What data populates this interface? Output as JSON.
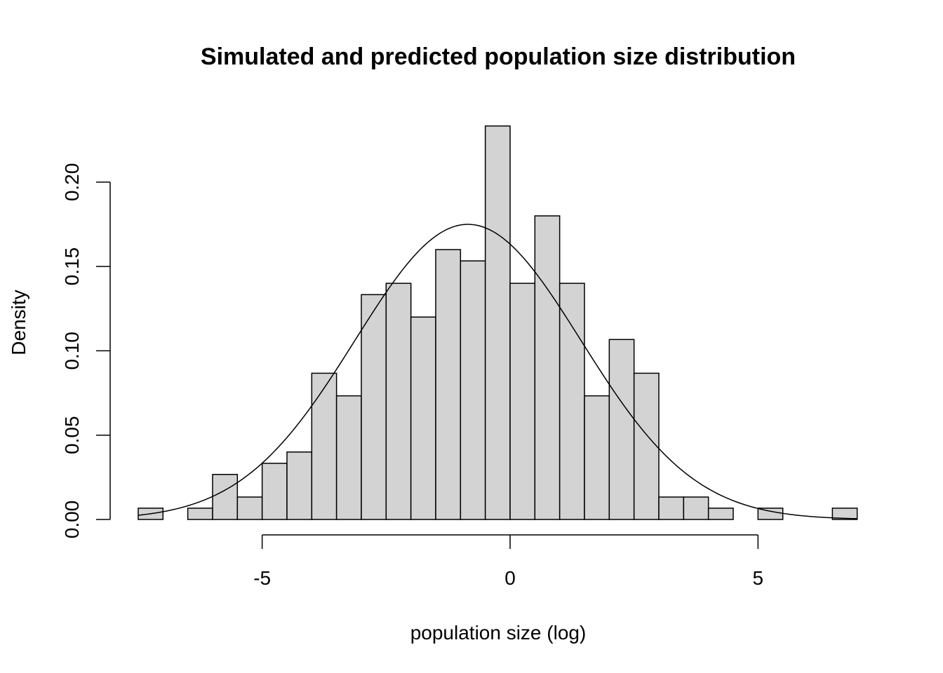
{
  "chart_data": {
    "type": "bar",
    "subtype": "histogram",
    "title": "Simulated and predicted population size distribution",
    "xlabel": "population size (log)",
    "ylabel": "Density",
    "xlim": [
      -7.5,
      7
    ],
    "ylim": [
      0,
      0.235
    ],
    "x_ticks": [
      -5,
      0,
      5
    ],
    "x_tick_labels": [
      "-5",
      "0",
      "5"
    ],
    "y_ticks": [
      0,
      0.05,
      0.1,
      0.15,
      0.2
    ],
    "y_tick_labels": [
      "0.00",
      "0.05",
      "0.10",
      "0.15",
      "0.20"
    ],
    "bar_color": "#d3d3d3",
    "bin_width": 0.5,
    "bins": [
      {
        "x0": -7.5,
        "x1": -7.0,
        "density": 0.0067
      },
      {
        "x0": -7.0,
        "x1": -6.5,
        "density": 0.0
      },
      {
        "x0": -6.5,
        "x1": -6.0,
        "density": 0.0067
      },
      {
        "x0": -6.0,
        "x1": -5.5,
        "density": 0.0267
      },
      {
        "x0": -5.5,
        "x1": -5.0,
        "density": 0.0133
      },
      {
        "x0": -5.0,
        "x1": -4.5,
        "density": 0.0333
      },
      {
        "x0": -4.5,
        "x1": -4.0,
        "density": 0.04
      },
      {
        "x0": -4.0,
        "x1": -3.5,
        "density": 0.0867
      },
      {
        "x0": -3.5,
        "x1": -3.0,
        "density": 0.0733
      },
      {
        "x0": -3.0,
        "x1": -2.5,
        "density": 0.1333
      },
      {
        "x0": -2.5,
        "x1": -2.0,
        "density": 0.14
      },
      {
        "x0": -2.0,
        "x1": -1.5,
        "density": 0.12
      },
      {
        "x0": -1.5,
        "x1": -1.0,
        "density": 0.16
      },
      {
        "x0": -1.0,
        "x1": -0.5,
        "density": 0.1533
      },
      {
        "x0": -0.5,
        "x1": 0.0,
        "density": 0.2333
      },
      {
        "x0": 0.0,
        "x1": 0.5,
        "density": 0.14
      },
      {
        "x0": 0.5,
        "x1": 1.0,
        "density": 0.18
      },
      {
        "x0": 1.0,
        "x1": 1.5,
        "density": 0.14
      },
      {
        "x0": 1.5,
        "x1": 2.0,
        "density": 0.0733
      },
      {
        "x0": 2.0,
        "x1": 2.5,
        "density": 0.1067
      },
      {
        "x0": 2.5,
        "x1": 3.0,
        "density": 0.0867
      },
      {
        "x0": 3.0,
        "x1": 3.5,
        "density": 0.0133
      },
      {
        "x0": 3.5,
        "x1": 4.0,
        "density": 0.0133
      },
      {
        "x0": 4.0,
        "x1": 4.5,
        "density": 0.0067
      },
      {
        "x0": 4.5,
        "x1": 5.0,
        "density": 0.0
      },
      {
        "x0": 5.0,
        "x1": 5.5,
        "density": 0.0067
      },
      {
        "x0": 5.5,
        "x1": 6.0,
        "density": 0.0
      },
      {
        "x0": 6.0,
        "x1": 6.5,
        "density": 0.0
      },
      {
        "x0": 6.5,
        "x1": 7.0,
        "density": 0.0067
      }
    ],
    "curve": {
      "type": "normal-density",
      "mean": -0.85,
      "sd": 2.28,
      "x_range": [
        -7.5,
        7
      ]
    },
    "grid": false,
    "legend": "none"
  }
}
